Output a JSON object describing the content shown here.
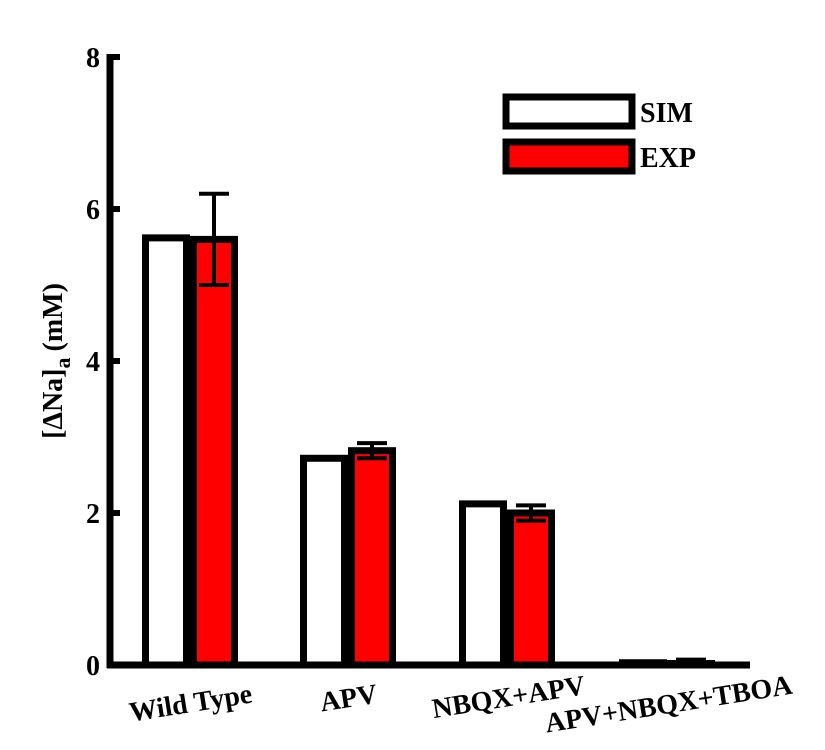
{
  "chart_data": {
    "type": "bar",
    "title": "",
    "xlabel": "",
    "ylabel": {
      "main": "[ΔNa]",
      "subscript": "a",
      "unit": "(mM)"
    },
    "ylim": [
      0,
      8
    ],
    "yticks": [
      "0",
      "2",
      "4",
      "6",
      "8"
    ],
    "grid": false,
    "legend_position": "top-right",
    "categories": [
      "Wild Type",
      "APV",
      "NBQX+APV",
      "APV+NBQX+TBOA"
    ],
    "series": [
      {
        "name": "SIM",
        "color": "#ffffff",
        "values": [
          5.62,
          2.72,
          2.12,
          0.03
        ],
        "errors": [
          0,
          0,
          0,
          0
        ]
      },
      {
        "name": "EXP",
        "color": "#ff0000",
        "values": [
          5.6,
          2.82,
          2.0,
          0.02
        ],
        "errors": [
          0.6,
          0.1,
          0.1,
          0.05
        ]
      }
    ]
  }
}
